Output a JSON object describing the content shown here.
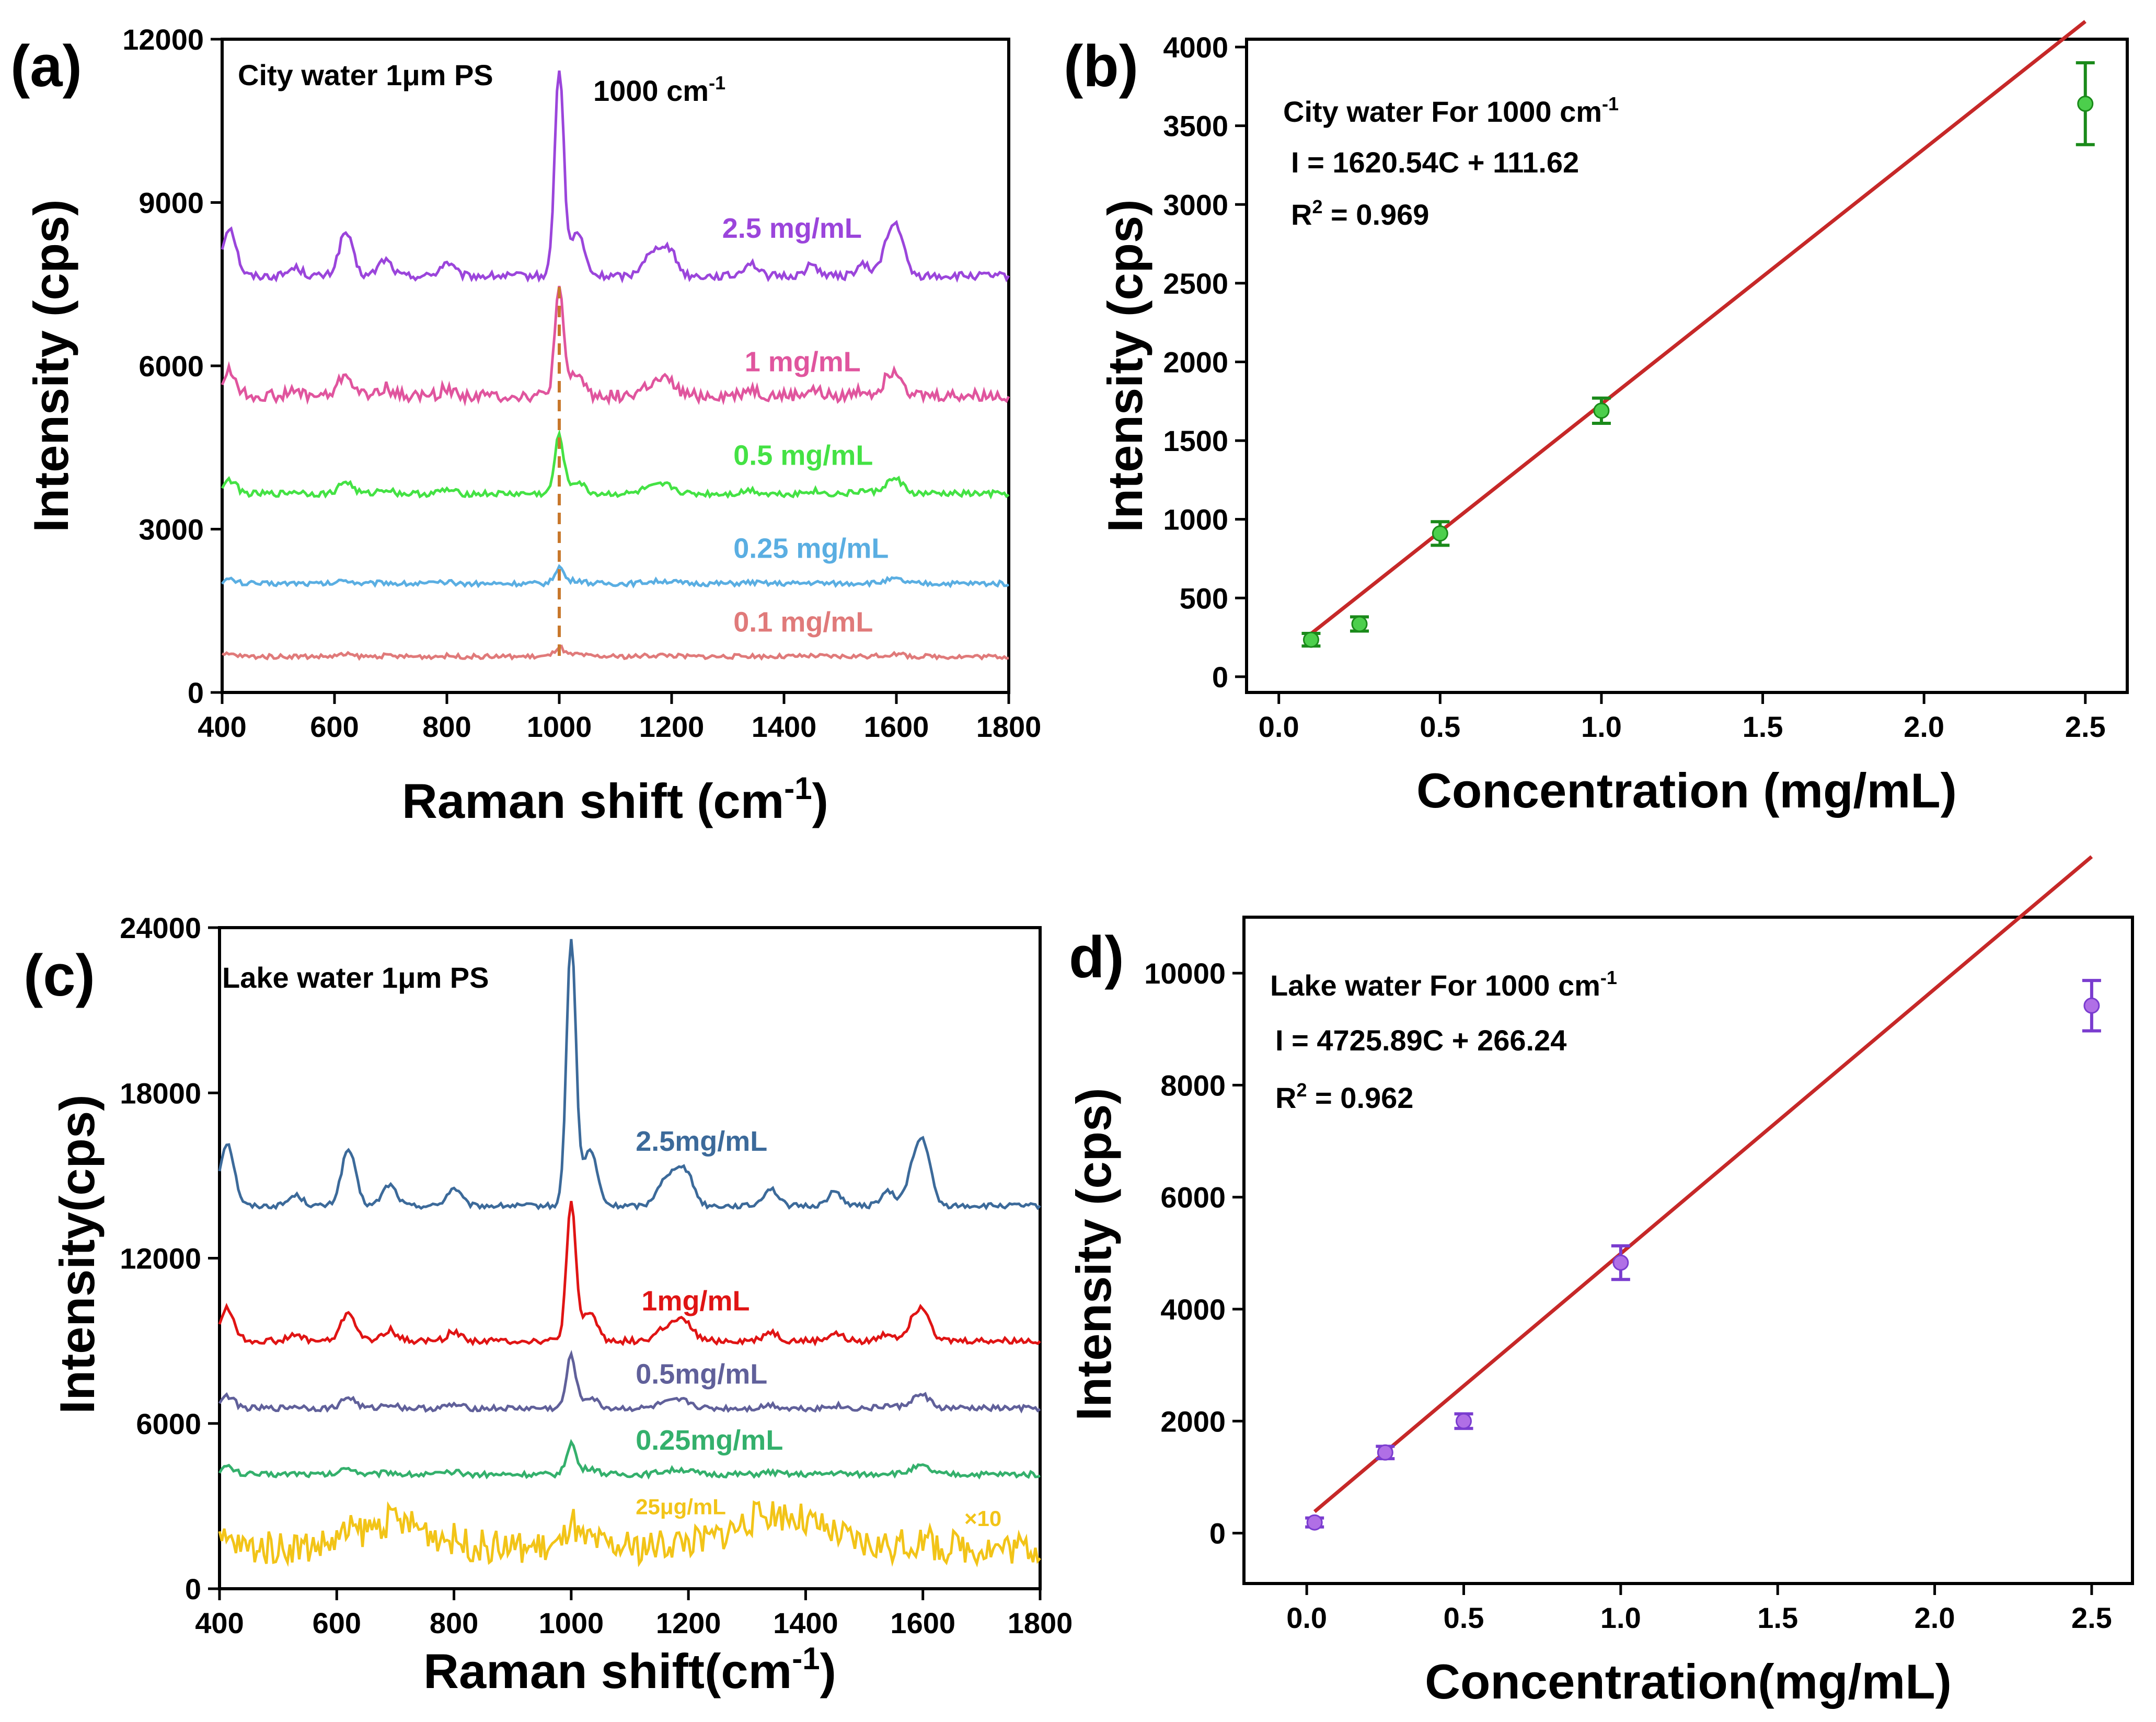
{
  "chart_data": [
    {
      "panel": "(a)",
      "type": "line",
      "title": "City water 1μm PS",
      "peak_label": "1000 cm-1",
      "xlabel": "Raman shift (cm-1)",
      "ylabel": "Intensity (cps)",
      "xlim": [
        400,
        1800
      ],
      "ylim": [
        0,
        12000
      ],
      "xticks": [
        400,
        600,
        800,
        1000,
        1200,
        1400,
        1600,
        1800
      ],
      "yticks": [
        0,
        3000,
        6000,
        9000,
        12000
      ],
      "dashed_marker_x": 1000,
      "peaks": [
        [
          413,
          0.9
        ],
        [
          530,
          0.15
        ],
        [
          620,
          0.8
        ],
        [
          690,
          0.3
        ],
        [
          800,
          0.25
        ],
        [
          1000,
          3.8
        ],
        [
          1032,
          0.8
        ],
        [
          1155,
          0.3
        ],
        [
          1180,
          0.45
        ],
        [
          1200,
          0.35
        ],
        [
          1340,
          0.25
        ],
        [
          1450,
          0.2
        ],
        [
          1540,
          0.2
        ],
        [
          1583,
          0.45
        ],
        [
          1602,
          0.8
        ]
      ],
      "series": [
        {
          "name": "2.5 mg/mL",
          "color": "#9b45db",
          "baseline": 7650,
          "scale": 1000,
          "noise": 70,
          "label_x": 1290,
          "label_y": 8350
        },
        {
          "name": "1 mg/mL",
          "color": "#e0559e",
          "baseline": 5450,
          "scale": 500,
          "noise": 110,
          "label_x": 1330,
          "label_y": 5900
        },
        {
          "name": "0.5 mg/mL",
          "color": "#44e244",
          "baseline": 3650,
          "scale": 280,
          "noise": 55,
          "label_x": 1310,
          "label_y": 4180
        },
        {
          "name": "0.25 mg/mL",
          "color": "#5aaee2",
          "baseline": 2000,
          "scale": 80,
          "noise": 45,
          "label_x": 1310,
          "label_y": 2470
        },
        {
          "name": "0.1 mg/mL",
          "color": "#e07a7a",
          "baseline": 660,
          "scale": 45,
          "noise": 40,
          "label_x": 1310,
          "label_y": 1120
        }
      ]
    },
    {
      "panel": "(b)",
      "type": "scatter",
      "xlabel": "Concentration (mg/mL)",
      "ylabel": "Intensity (cps)",
      "xlim": [
        -0.1,
        2.63
      ],
      "ylim": [
        -100,
        4050
      ],
      "xticks": [
        0.0,
        0.5,
        1.0,
        1.5,
        2.0,
        2.5
      ],
      "xtick_labels": [
        "0.0",
        "0.5",
        "1.0",
        "1.5",
        "2.0",
        "2.5"
      ],
      "yticks": [
        0,
        500,
        1000,
        1500,
        2000,
        2500,
        3000,
        3500,
        4000
      ],
      "equation_title": "City water For 1000 cm-1",
      "equation": "I = 1620.54C + 111.62",
      "r2": "R2 = 0.969",
      "fit": {
        "slope": 1620.54,
        "intercept": 111.62,
        "x_range": [
          0.08,
          2.5
        ],
        "color": "#c62828"
      },
      "point_color": "#4ccf4c",
      "errorbar_color": "#1a8a1a",
      "points": [
        {
          "x": 0.1,
          "y": 235,
          "err": 40
        },
        {
          "x": 0.25,
          "y": 335,
          "err": 45
        },
        {
          "x": 0.5,
          "y": 910,
          "err": 75
        },
        {
          "x": 1.0,
          "y": 1690,
          "err": 80
        },
        {
          "x": 2.5,
          "y": 3640,
          "err": 260
        }
      ]
    },
    {
      "panel": "(c)",
      "type": "line",
      "title": "Lake water 1μm PS",
      "xlabel": "Raman shift(cm-1)",
      "ylabel": "Intensity(cps)",
      "xlim": [
        400,
        1800
      ],
      "ylim": [
        0,
        24000
      ],
      "xticks": [
        400,
        600,
        800,
        1000,
        1200,
        1400,
        1600,
        1800
      ],
      "yticks": [
        0,
        6000,
        12000,
        18000,
        24000
      ],
      "peaks": [
        [
          413,
          0.9
        ],
        [
          530,
          0.15
        ],
        [
          620,
          0.8
        ],
        [
          690,
          0.3
        ],
        [
          800,
          0.25
        ],
        [
          1000,
          3.8
        ],
        [
          1032,
          0.8
        ],
        [
          1155,
          0.3
        ],
        [
          1180,
          0.45
        ],
        [
          1200,
          0.35
        ],
        [
          1340,
          0.25
        ],
        [
          1450,
          0.2
        ],
        [
          1540,
          0.2
        ],
        [
          1583,
          0.45
        ],
        [
          1602,
          0.8
        ]
      ],
      "multiplier_label": "×10",
      "series": [
        {
          "name": "2.5mg/mL",
          "color": "#3c6a9a",
          "baseline": 13900,
          "scale": 2550,
          "noise": 90,
          "label_x": 1110,
          "label_y": 15900,
          "small": false
        },
        {
          "name": "1mg/mL",
          "color": "#e01414",
          "baseline": 9000,
          "scale": 1300,
          "noise": 110,
          "label_x": 1120,
          "label_y": 10100,
          "small": false
        },
        {
          "name": "0.5mg/mL",
          "color": "#60609a",
          "baseline": 6550,
          "scale": 500,
          "noise": 100,
          "label_x": 1110,
          "label_y": 7450,
          "small": false
        },
        {
          "name": "0.25mg/mL",
          "color": "#34b06c",
          "baseline": 4150,
          "scale": 300,
          "noise": 100,
          "label_x": 1110,
          "label_y": 5050,
          "small": false
        },
        {
          "name": "25μg/mL",
          "color": "#f2c418",
          "baseline": 1500,
          "scale": 250,
          "noise": 600,
          "label_x": 1110,
          "label_y": 2700,
          "small": true,
          "noisy": true
        }
      ]
    },
    {
      "panel": "d)",
      "type": "scatter",
      "xlabel": "Concentration(mg/mL)",
      "ylabel": "Intensity (cps)",
      "xlim": [
        -0.2,
        2.63
      ],
      "ylim": [
        -900,
        11000
      ],
      "xticks": [
        0.0,
        0.5,
        1.0,
        1.5,
        2.0,
        2.5
      ],
      "xtick_labels": [
        "0.0",
        "0.5",
        "1.0",
        "1.5",
        "2.0",
        "2.5"
      ],
      "yticks": [
        0,
        2000,
        4000,
        6000,
        8000,
        10000
      ],
      "equation_title": "Lake water For 1000 cm-1",
      "equation": "I = 4725.89C + 266.24",
      "r2": "R2 = 0.962",
      "fit": {
        "slope": 4725.89,
        "intercept": 266.24,
        "x_range": [
          0.025,
          2.5
        ],
        "color": "#c62828"
      },
      "point_color": "#b06fe6",
      "errorbar_color": "#7a3ccf",
      "points": [
        {
          "x": 0.025,
          "y": 190,
          "err": 80
        },
        {
          "x": 0.25,
          "y": 1440,
          "err": 110
        },
        {
          "x": 0.5,
          "y": 2000,
          "err": 130
        },
        {
          "x": 1.0,
          "y": 4830,
          "err": 300
        },
        {
          "x": 2.5,
          "y": 9420,
          "err": 450
        }
      ]
    }
  ]
}
